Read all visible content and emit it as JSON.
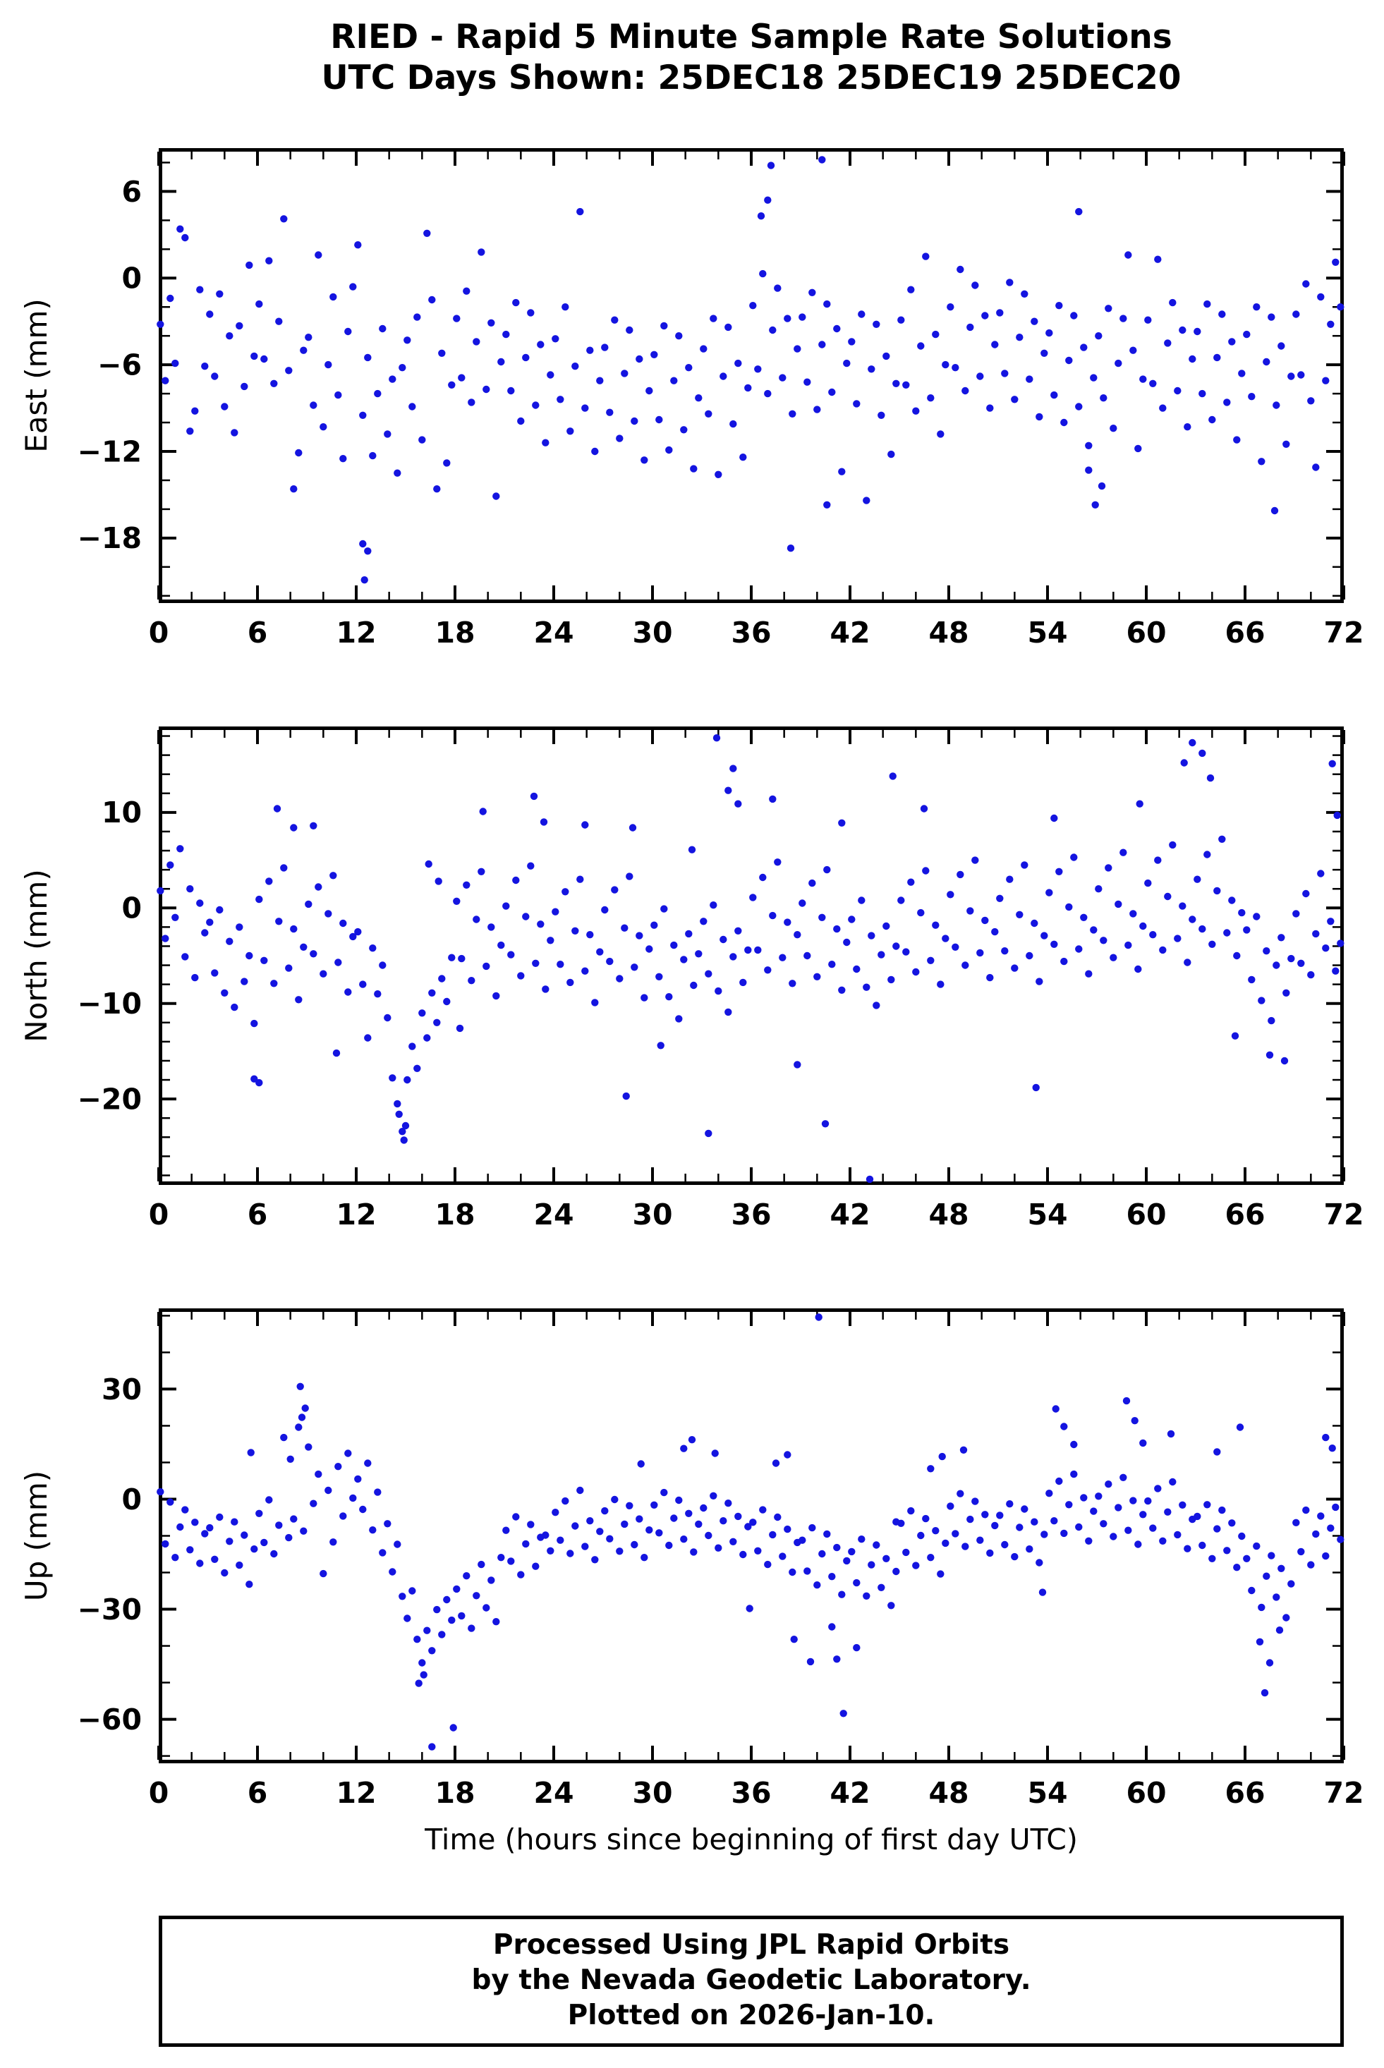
{
  "header": {
    "line1": "RIED - Rapid 5 Minute Sample Rate Solutions",
    "line2": "UTC Days Shown:  25DEC18 25DEC19 25DEC20"
  },
  "x_axis_title": "Time (hours since beginning of first day UTC)",
  "footer": {
    "line1": "Processed Using JPL Rapid Orbits",
    "line2": "by the Nevada Geodetic Laboratory.",
    "line3": "Plotted on 2026-Jan-10."
  },
  "style": {
    "point_color": "#1414e0",
    "frame_color": "#000000",
    "point_radius": 5.2
  },
  "chart_data": [
    {
      "type": "scatter",
      "ylabel": "East (mm)",
      "xlim": [
        0,
        72
      ],
      "ylim": [
        -22.5,
        9
      ],
      "xticks": [
        0,
        6,
        12,
        18,
        24,
        30,
        36,
        42,
        48,
        54,
        60,
        66,
        72
      ],
      "xminor": 2,
      "yticks": [
        6,
        0,
        -6,
        -12,
        -18
      ],
      "yminor": 2,
      "x0": 0.1,
      "dx": 0.3,
      "y": [
        -3.2,
        -7.1,
        -1.4,
        -5.9,
        3.4,
        2.8,
        -10.6,
        -9.2,
        -0.8,
        -6.1,
        -2.5,
        -6.8,
        -1.1,
        -8.9,
        -4.0,
        -10.7,
        -3.3,
        -7.5,
        0.9,
        -5.4,
        -1.8,
        -5.6,
        1.2,
        -7.3,
        -3.0,
        4.1,
        -6.4,
        -14.6,
        -12.1,
        -5.0,
        -4.1,
        -8.8,
        1.6,
        -10.3,
        -6.0,
        -1.3,
        -8.1,
        -12.5,
        -3.7,
        -0.6,
        2.3,
        -9.5,
        -5.5,
        -12.3,
        -8.0,
        -3.5,
        -10.8,
        -7.0,
        -13.5,
        -6.2,
        -4.3,
        -8.9,
        -2.7,
        -11.2,
        3.1,
        -1.5,
        -14.6,
        -5.2,
        -12.8,
        -7.4,
        -2.8,
        -6.9,
        -0.9,
        -8.6,
        -4.4,
        1.8,
        -7.7,
        -3.1,
        -15.1,
        -5.8,
        -3.9,
        -7.8,
        -1.7,
        -9.9,
        -5.5,
        -2.4,
        -8.8,
        -4.6,
        -11.4,
        -6.7,
        -4.2,
        -8.4,
        -2.0,
        -10.6,
        -6.1,
        4.6,
        -9.0,
        -5.0,
        -12.0,
        -7.1,
        -4.8,
        -9.3,
        -2.9,
        -11.1,
        -6.6,
        -3.6,
        -9.9,
        -5.6,
        -12.6,
        -7.8,
        -5.3,
        -9.8,
        -3.3,
        -11.9,
        -7.1,
        -4.0,
        -10.5,
        -6.2,
        -13.2,
        -8.3,
        -4.9,
        -9.4,
        -2.8,
        -13.6,
        -6.8,
        -3.4,
        -10.1,
        -5.9,
        -12.4,
        -7.6,
        -1.9,
        -6.3,
        0.3,
        -8.0,
        -3.6,
        -0.7,
        -6.9,
        -2.8,
        -9.4,
        -4.9,
        -2.7,
        -7.2,
        -1.0,
        -9.1,
        -4.6,
        -1.8,
        -7.9,
        -3.5,
        -13.4,
        -5.9,
        -4.4,
        -8.7,
        -2.5,
        -15.4,
        -6.3,
        -3.2,
        -9.5,
        -5.4,
        -12.2,
        -7.3,
        -2.9,
        -7.4,
        -0.8,
        -9.2,
        -4.7,
        1.5,
        -8.3,
        -3.9,
        -10.8,
        -6.0,
        -2.0,
        -6.2,
        0.6,
        -7.8,
        -3.4,
        -0.5,
        -6.8,
        -2.6,
        -9.0,
        -4.6,
        -2.4,
        -6.6,
        -0.3,
        -8.4,
        -4.1,
        -1.1,
        -7.0,
        -3.0,
        -9.6,
        -5.2,
        -3.8,
        -8.1,
        -1.9,
        -10.0,
        -5.7,
        -2.6,
        -8.9,
        -4.8,
        -11.6,
        -6.9,
        -4.0,
        -8.3,
        -2.1,
        -10.4,
        -5.9,
        -2.8,
        1.6,
        -5.0,
        -11.8,
        -7.0,
        -2.9,
        -7.3,
        1.3,
        -9.0,
        -4.5,
        -1.7,
        -7.8,
        -3.6,
        -10.3,
        -5.6,
        -3.7,
        -8.0,
        -1.8,
        -9.8,
        -5.5,
        -2.5,
        -8.6,
        -4.4,
        -11.2,
        -6.6,
        -3.9,
        -8.2,
        -2.0,
        -12.7,
        -5.8,
        -2.7,
        -8.8,
        -4.7,
        -11.5,
        -6.8,
        -2.5,
        -6.7,
        -0.4,
        -8.5,
        -13.1,
        -1.3,
        -7.1,
        -3.2,
        1.1,
        -2.0
      ],
      "extras": [
        [
          12.4,
          -18.4
        ],
        [
          12.7,
          -18.9
        ],
        [
          12.5,
          -20.9
        ],
        [
          37.2,
          7.8
        ],
        [
          40.3,
          8.2
        ],
        [
          37.0,
          5.4
        ],
        [
          36.6,
          4.3
        ],
        [
          38.4,
          -18.7
        ],
        [
          40.6,
          -15.7
        ],
        [
          55.9,
          4.6
        ],
        [
          56.5,
          -13.3
        ],
        [
          56.9,
          -15.7
        ],
        [
          57.3,
          -14.4
        ],
        [
          67.8,
          -16.1
        ]
      ]
    },
    {
      "type": "scatter",
      "ylabel": "North (mm)",
      "xlim": [
        0,
        72
      ],
      "ylim": [
        -29,
        19
      ],
      "xticks": [
        0,
        6,
        12,
        18,
        24,
        30,
        36,
        42,
        48,
        54,
        60,
        66,
        72
      ],
      "xminor": 2,
      "yticks": [
        10,
        0,
        -10,
        -20
      ],
      "yminor": 2,
      "x0": 0.1,
      "dx": 0.3,
      "y": [
        1.8,
        -3.2,
        4.5,
        -1.0,
        6.2,
        -5.1,
        2.0,
        -7.3,
        0.5,
        -2.6,
        -1.5,
        -6.8,
        -0.2,
        -8.9,
        -3.5,
        -10.4,
        -2.0,
        -7.7,
        -5.0,
        -12.1,
        0.9,
        -5.5,
        2.8,
        -7.9,
        -1.4,
        4.2,
        -6.3,
        -2.2,
        -9.6,
        -4.1,
        0.4,
        -4.8,
        2.2,
        -6.9,
        -0.6,
        3.4,
        -5.7,
        -1.6,
        -8.8,
        -3.0,
        -2.5,
        -8.0,
        -13.6,
        -4.2,
        -9.0,
        -6.0,
        -11.5,
        -17.8,
        -20.5,
        -23.4,
        -18.0,
        -14.5,
        -16.8,
        -11.0,
        -13.6,
        -8.9,
        -12.0,
        -7.4,
        -9.8,
        -5.2,
        0.7,
        -5.3,
        2.4,
        -7.6,
        -1.2,
        3.8,
        -6.1,
        -2.0,
        -9.2,
        -3.9,
        0.2,
        -4.9,
        2.9,
        -7.1,
        -0.9,
        4.4,
        -5.8,
        -1.7,
        -8.5,
        -3.4,
        -0.4,
        -5.9,
        1.7,
        -7.8,
        -2.4,
        3.0,
        -6.6,
        -2.8,
        -9.9,
        -4.6,
        -0.2,
        -5.6,
        1.9,
        -7.4,
        -2.1,
        3.3,
        -6.2,
        -2.9,
        -9.4,
        -4.3,
        -1.8,
        -7.2,
        -0.1,
        -9.3,
        -3.9,
        -11.6,
        -5.4,
        -2.7,
        -8.1,
        -4.8,
        -1.4,
        -6.9,
        0.3,
        -8.7,
        -3.3,
        -10.9,
        -5.1,
        -2.4,
        -7.8,
        -4.4,
        1.1,
        -4.4,
        3.2,
        -6.5,
        -0.8,
        4.8,
        -5.2,
        -1.5,
        -7.9,
        -2.8,
        0.5,
        -5.0,
        2.6,
        -7.2,
        -1.0,
        4.0,
        -5.9,
        -2.2,
        -8.6,
        -3.6,
        -1.2,
        -6.4,
        0.8,
        -8.3,
        -2.9,
        -10.2,
        -4.9,
        -1.9,
        -7.5,
        -4.0,
        0.8,
        -4.6,
        2.7,
        -6.7,
        -0.5,
        3.9,
        -5.5,
        -1.8,
        -8.0,
        -3.2,
        1.4,
        -4.1,
        3.5,
        -6.0,
        -0.3,
        5.0,
        -4.7,
        -1.3,
        -7.3,
        -2.5,
        1.0,
        -4.5,
        3.0,
        -6.3,
        -0.7,
        4.5,
        -5.0,
        -1.6,
        -7.7,
        -2.9,
        1.6,
        -3.8,
        3.8,
        -5.6,
        0.1,
        5.3,
        -4.3,
        -1.0,
        -6.9,
        -2.3,
        2.0,
        -3.4,
        4.2,
        -5.2,
        0.4,
        5.8,
        -3.9,
        -0.6,
        -6.4,
        -1.9,
        2.6,
        -2.8,
        5.0,
        -4.4,
        1.2,
        6.6,
        -3.2,
        0.2,
        -5.7,
        -1.2,
        3.0,
        -2.2,
        5.6,
        -3.8,
        1.8,
        7.2,
        -2.6,
        0.8,
        -5.0,
        -0.5,
        -2.3,
        -7.5,
        -0.9,
        -9.7,
        -4.5,
        -11.8,
        -6.0,
        -3.1,
        -8.9,
        -5.3,
        -0.6,
        -5.8,
        1.5,
        -7.0,
        -2.7,
        3.6,
        -4.2,
        -1.4,
        -6.6,
        -3.7
      ],
      "extras": [
        [
          5.8,
          -17.9
        ],
        [
          6.1,
          -18.3
        ],
        [
          7.2,
          10.4
        ],
        [
          8.2,
          8.4
        ],
        [
          9.4,
          8.6
        ],
        [
          10.8,
          -15.2
        ],
        [
          14.9,
          -24.3
        ],
        [
          15.0,
          -22.8
        ],
        [
          14.6,
          -21.6
        ],
        [
          16.4,
          4.6
        ],
        [
          17.0,
          2.8
        ],
        [
          19.7,
          10.1
        ],
        [
          18.3,
          -12.6
        ],
        [
          22.8,
          11.7
        ],
        [
          23.4,
          9.0
        ],
        [
          25.9,
          8.7
        ],
        [
          28.4,
          -19.7
        ],
        [
          28.8,
          8.4
        ],
        [
          30.5,
          -14.4
        ],
        [
          32.4,
          6.1
        ],
        [
          33.9,
          17.8
        ],
        [
          33.4,
          -23.6
        ],
        [
          34.6,
          12.3
        ],
        [
          34.9,
          14.6
        ],
        [
          35.2,
          10.9
        ],
        [
          37.3,
          11.4
        ],
        [
          38.8,
          -16.4
        ],
        [
          40.5,
          -22.6
        ],
        [
          41.5,
          8.9
        ],
        [
          43.2,
          -28.4
        ],
        [
          44.6,
          13.8
        ],
        [
          46.5,
          10.4
        ],
        [
          53.3,
          -18.8
        ],
        [
          54.4,
          9.4
        ],
        [
          59.6,
          10.9
        ],
        [
          62.3,
          15.2
        ],
        [
          62.8,
          17.3
        ],
        [
          63.4,
          16.2
        ],
        [
          63.9,
          13.6
        ],
        [
          65.4,
          -13.4
        ],
        [
          67.5,
          -15.4
        ],
        [
          68.4,
          -16.0
        ],
        [
          71.3,
          15.1
        ],
        [
          71.6,
          9.7
        ]
      ]
    },
    {
      "type": "scatter",
      "ylabel": "Up (mm)",
      "xlim": [
        0,
        72
      ],
      "ylim": [
        -72,
        52
      ],
      "xticks": [
        0,
        6,
        12,
        18,
        24,
        30,
        36,
        42,
        48,
        54,
        60,
        66,
        72
      ],
      "xminor": 2,
      "yticks": [
        30,
        0,
        -30,
        -60
      ],
      "yminor": 10,
      "x0": 0.1,
      "dx": 0.3,
      "y": [
        2.0,
        -12.2,
        -0.8,
        -15.9,
        -7.6,
        -2.9,
        -13.8,
        -6.3,
        -17.5,
        -9.4,
        -7.8,
        -16.4,
        -4.9,
        -20.1,
        -11.5,
        -6.2,
        -18.0,
        -9.8,
        -23.2,
        -13.6,
        -3.9,
        -11.8,
        -0.2,
        -14.9,
        -7.1,
        16.8,
        -10.5,
        -5.4,
        19.6,
        -8.7,
        14.2,
        -1.2,
        6.8,
        -20.3,
        2.4,
        -11.7,
        8.9,
        -4.6,
        12.5,
        0.3,
        5.5,
        -2.8,
        9.8,
        -8.4,
        1.9,
        -14.6,
        -6.7,
        -19.8,
        -12.3,
        -26.5,
        -32.5,
        -25.0,
        -38.2,
        -44.6,
        -35.8,
        -41.3,
        -30.1,
        -36.9,
        -27.4,
        -33.0,
        -24.5,
        -31.8,
        -20.9,
        -35.2,
        -26.3,
        -17.8,
        -29.6,
        -22.1,
        -33.4,
        -15.9,
        -8.5,
        -16.9,
        -4.8,
        -20.6,
        -12.2,
        -6.9,
        -18.3,
        -10.4,
        -9.8,
        -14.1,
        -3.6,
        -11.2,
        -0.5,
        -14.8,
        -7.3,
        2.4,
        -12.9,
        -5.9,
        -16.5,
        -8.8,
        -3.2,
        -10.8,
        -0.1,
        -14.2,
        -6.8,
        -1.8,
        -12.4,
        -5.4,
        -15.9,
        -8.4,
        -1.6,
        -9.2,
        1.8,
        -12.6,
        -5.2,
        -0.3,
        -10.9,
        -3.9,
        -14.4,
        -6.8,
        -2.4,
        -9.9,
        0.9,
        -13.3,
        -5.9,
        -1.1,
        -11.6,
        -4.7,
        -15.1,
        -7.5,
        -6.3,
        -14.1,
        -2.9,
        -17.8,
        -9.7,
        -4.9,
        -15.6,
        -8.2,
        -19.9,
        -11.8,
        -11.2,
        -19.6,
        -7.8,
        -23.4,
        -14.9,
        -9.5,
        -21.1,
        -13.2,
        -26.0,
        -16.8,
        -14.3,
        -22.8,
        -10.9,
        -26.4,
        -17.9,
        -12.5,
        -24.1,
        -16.2,
        -29.0,
        -19.7,
        -6.6,
        -14.5,
        -3.2,
        -18.1,
        -9.9,
        -5.3,
        -15.9,
        -8.6,
        -20.4,
        -12.0,
        -1.9,
        -9.4,
        1.5,
        -12.9,
        -5.5,
        -0.6,
        -11.2,
        -4.2,
        -14.7,
        -7.2,
        -4.4,
        -12.4,
        -1.3,
        -15.7,
        -7.7,
        -2.7,
        -13.6,
        -6.2,
        -17.3,
        -9.6,
        1.6,
        -5.9,
        4.9,
        -9.3,
        -1.5,
        6.8,
        -7.6,
        0.4,
        -11.4,
        -3.3,
        0.8,
        -6.7,
        4.1,
        -10.2,
        -2.3,
        5.9,
        -8.5,
        -0.4,
        -12.3,
        -4.2,
        -0.5,
        -7.9,
        2.9,
        -11.4,
        -3.5,
        4.7,
        -9.7,
        -1.6,
        -13.5,
        -5.5,
        -4.7,
        -12.6,
        -1.5,
        -16.2,
        -8.1,
        -3.0,
        -14.0,
        -6.5,
        -18.6,
        -10.1,
        -16.2,
        -24.9,
        -12.8,
        -29.5,
        -21.0,
        -15.4,
        -26.7,
        -18.9,
        -32.3,
        -23.1,
        -6.4,
        -14.3,
        -3.0,
        -17.9,
        -9.5,
        -4.6,
        -15.5,
        -7.9,
        -2.2,
        -11.0
      ],
      "extras": [
        [
          5.6,
          12.7
        ],
        [
          8.6,
          30.7
        ],
        [
          8.9,
          24.8
        ],
        [
          8.7,
          22.3
        ],
        [
          8.0,
          10.9
        ],
        [
          16.6,
          -67.5
        ],
        [
          16.1,
          -47.9
        ],
        [
          15.8,
          -50.2
        ],
        [
          17.9,
          -62.3
        ],
        [
          29.3,
          9.6
        ],
        [
          31.9,
          13.8
        ],
        [
          32.4,
          16.2
        ],
        [
          33.8,
          12.5
        ],
        [
          35.9,
          -29.8
        ],
        [
          37.5,
          9.8
        ],
        [
          38.2,
          12.1
        ],
        [
          38.6,
          -38.2
        ],
        [
          39.6,
          -44.3
        ],
        [
          41.2,
          -43.6
        ],
        [
          40.9,
          -34.8
        ],
        [
          40.1,
          49.6
        ],
        [
          41.6,
          -58.4
        ],
        [
          42.4,
          -40.5
        ],
        [
          44.8,
          -6.2
        ],
        [
          46.9,
          8.3
        ],
        [
          47.6,
          11.6
        ],
        [
          48.9,
          13.4
        ],
        [
          53.7,
          -25.4
        ],
        [
          54.5,
          24.6
        ],
        [
          55.0,
          19.8
        ],
        [
          55.6,
          14.9
        ],
        [
          58.8,
          26.8
        ],
        [
          59.3,
          21.4
        ],
        [
          59.8,
          15.3
        ],
        [
          61.5,
          17.8
        ],
        [
          64.3,
          12.9
        ],
        [
          65.7,
          19.6
        ],
        [
          67.2,
          -52.8
        ],
        [
          67.5,
          -44.6
        ],
        [
          66.9,
          -38.9
        ],
        [
          68.1,
          -35.7
        ],
        [
          70.9,
          16.8
        ],
        [
          71.3,
          13.9
        ]
      ]
    }
  ]
}
